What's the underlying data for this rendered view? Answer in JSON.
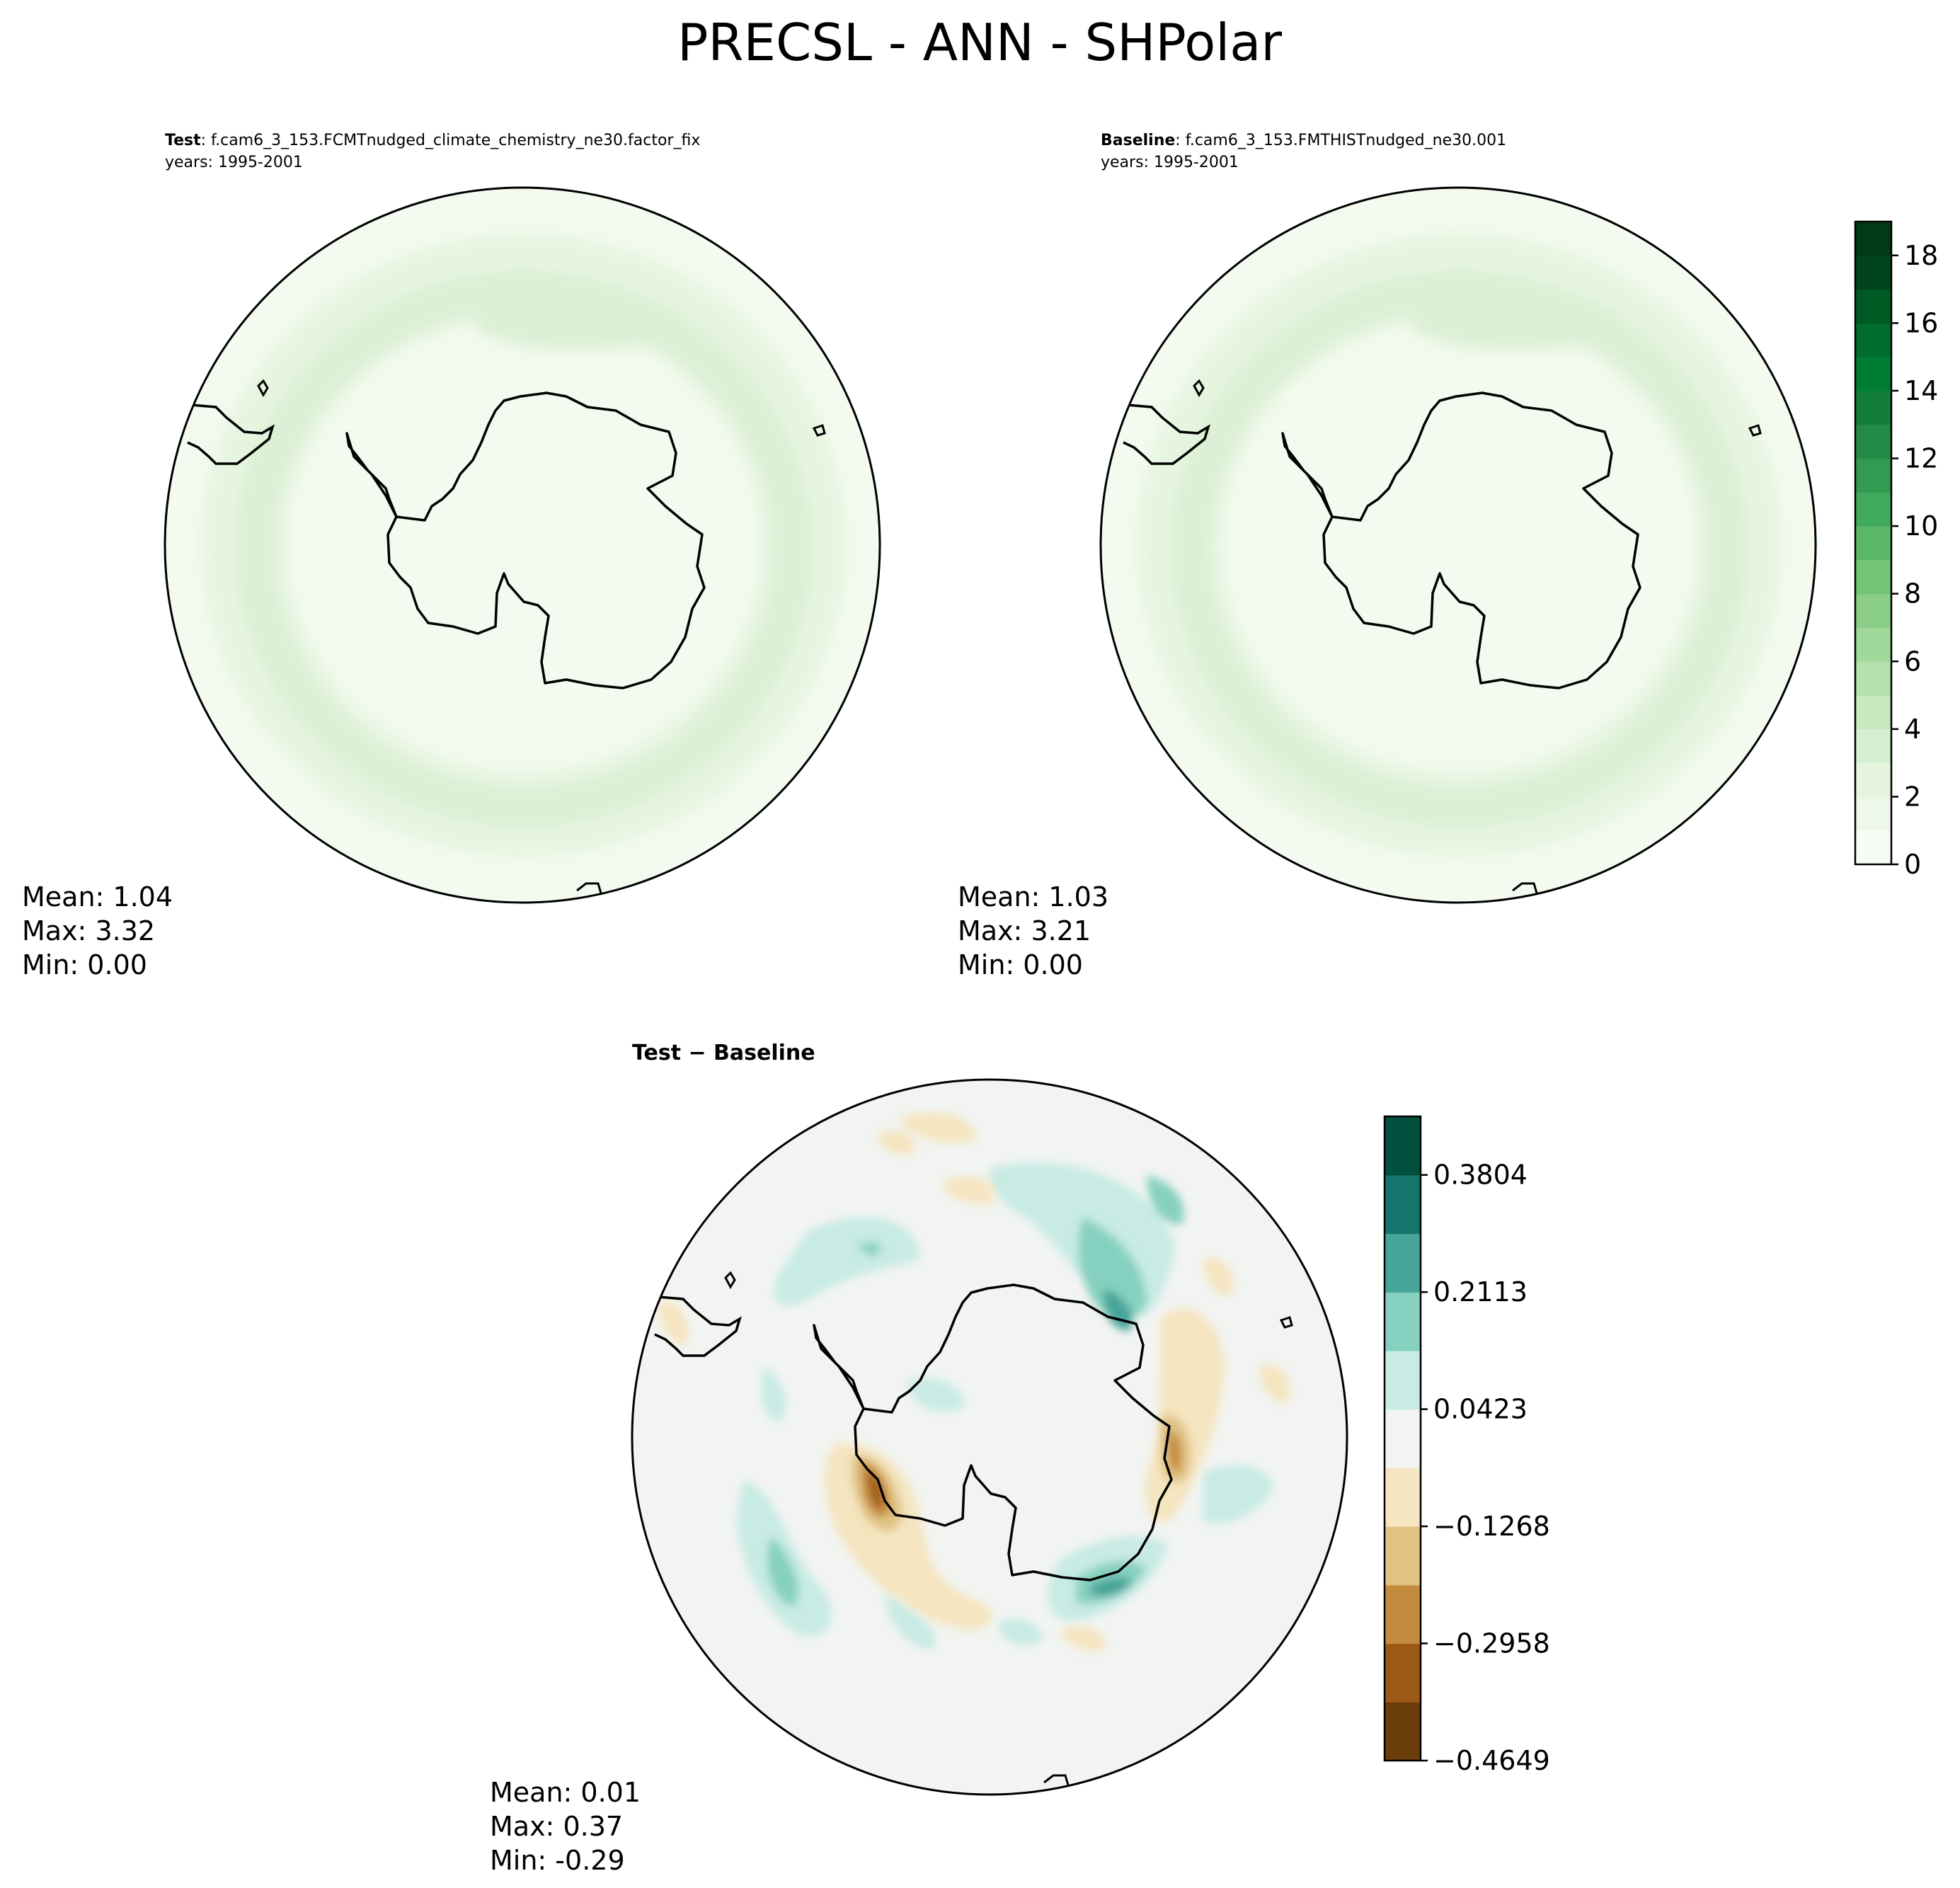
{
  "figure": {
    "title": "PRECSL - ANN - SHPolar"
  },
  "panels": [
    {
      "id": "test",
      "label": "Test",
      "case": ": f.cam6_3_153.FCMTnudged_climate_chemistry_ne30.factor_fix",
      "years": "years: 1995-2001",
      "stats": {
        "mean": "Mean:  1.04",
        "max": "Max:  3.32",
        "min": "Min:  0.00"
      }
    },
    {
      "id": "baseline",
      "label": "Baseline",
      "case": ": f.cam6_3_153.FMTHISTnudged_ne30.001",
      "years": "years: 1995-2001",
      "stats": {
        "mean": "Mean:  1.03",
        "max": "Max:  3.21",
        "min": "Min:  0.00"
      }
    },
    {
      "id": "diff",
      "label": "Test − Baseline",
      "stats": {
        "mean": "Mean:  0.01",
        "max": "Max:  0.37",
        "min": "Min: -0.29"
      }
    }
  ],
  "chart_data": [
    {
      "type": "heatmap",
      "projection": "south-polar-stereographic",
      "title": "Test : f.cam6_3_153.FCMTnudged_climate_chemistry_ne30.factor_fix",
      "colormap": "Greens",
      "value_range": [
        0,
        19
      ],
      "field_summary": {
        "mean": 1.04,
        "max": 3.32,
        "min": 0.0
      }
    },
    {
      "type": "heatmap",
      "projection": "south-polar-stereographic",
      "title": "Baseline : f.cam6_3_153.FMTHISTnudged_ne30.001",
      "colormap": "Greens",
      "value_range": [
        0,
        19
      ],
      "field_summary": {
        "mean": 1.03,
        "max": 3.21,
        "min": 0.0
      },
      "colorbar": {
        "ticks": [
          "0",
          "2",
          "4",
          "6",
          "8",
          "10",
          "12",
          "14",
          "16",
          "18"
        ],
        "tick_values": [
          0,
          2,
          4,
          6,
          8,
          10,
          12,
          14,
          16,
          18
        ],
        "levels": 20,
        "colors": [
          "#f7fcf5",
          "#eef8ea",
          "#e5f5e0",
          "#d6efd0",
          "#c7e9c0",
          "#b4e1ad",
          "#a1d99b",
          "#8ace88",
          "#74c476",
          "#5bb86a",
          "#41ab5d",
          "#329b51",
          "#238b45",
          "#137e3c",
          "#007d34",
          "#006d2c",
          "#005a24",
          "#00441b",
          "#003a17"
        ]
      }
    },
    {
      "type": "heatmap",
      "projection": "south-polar-stereographic",
      "title": "Test − Baseline",
      "colormap": "BrBG",
      "value_range": [
        -0.4649,
        0.4649
      ],
      "field_summary": {
        "mean": 0.01,
        "max": 0.37,
        "min": -0.29
      },
      "colorbar": {
        "ticks": [
          "0.3804",
          "0.2113",
          "0.0423",
          "−0.1268",
          "−0.2958",
          "−0.4649"
        ],
        "tick_values": [
          0.3804,
          0.2113,
          0.0423,
          -0.1268,
          -0.2958,
          -0.4649
        ],
        "levels": 11,
        "colors": [
          "#6b3d0a",
          "#9c5a16",
          "#c48a3e",
          "#e0c383",
          "#f5e5c0",
          "#f2f4f2",
          "#c8ebe4",
          "#86d0c0",
          "#46a498",
          "#13756b",
          "#01503e"
        ]
      }
    }
  ]
}
